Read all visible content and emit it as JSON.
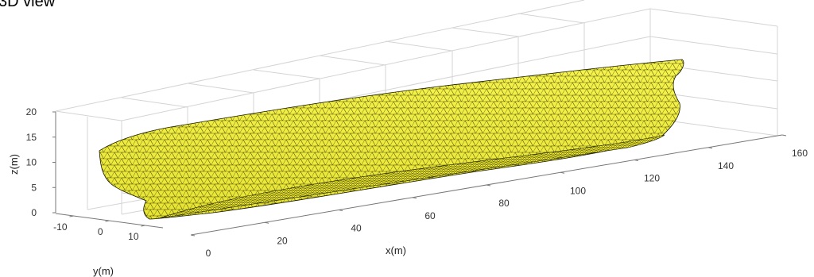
{
  "figure": {
    "title": "3D view"
  },
  "chart_data": {
    "type": "surface-mesh-3d",
    "title": "3D view",
    "xlabel": "x(m)",
    "ylabel": "y(m)",
    "zlabel": "z(m)",
    "x_ticks": [
      0,
      20,
      40,
      60,
      80,
      100,
      120,
      140,
      160
    ],
    "y_ticks": [
      -10,
      0,
      10
    ],
    "z_ticks": [
      0,
      5,
      10,
      15,
      20
    ],
    "xlim": [
      0,
      160
    ],
    "ylim": [
      -15,
      15
    ],
    "zlim": [
      0,
      20
    ],
    "grid": true,
    "surface": "triangulated ship hull mesh",
    "face_color": "#f2f03a",
    "edge_color": "#1a1a00"
  }
}
